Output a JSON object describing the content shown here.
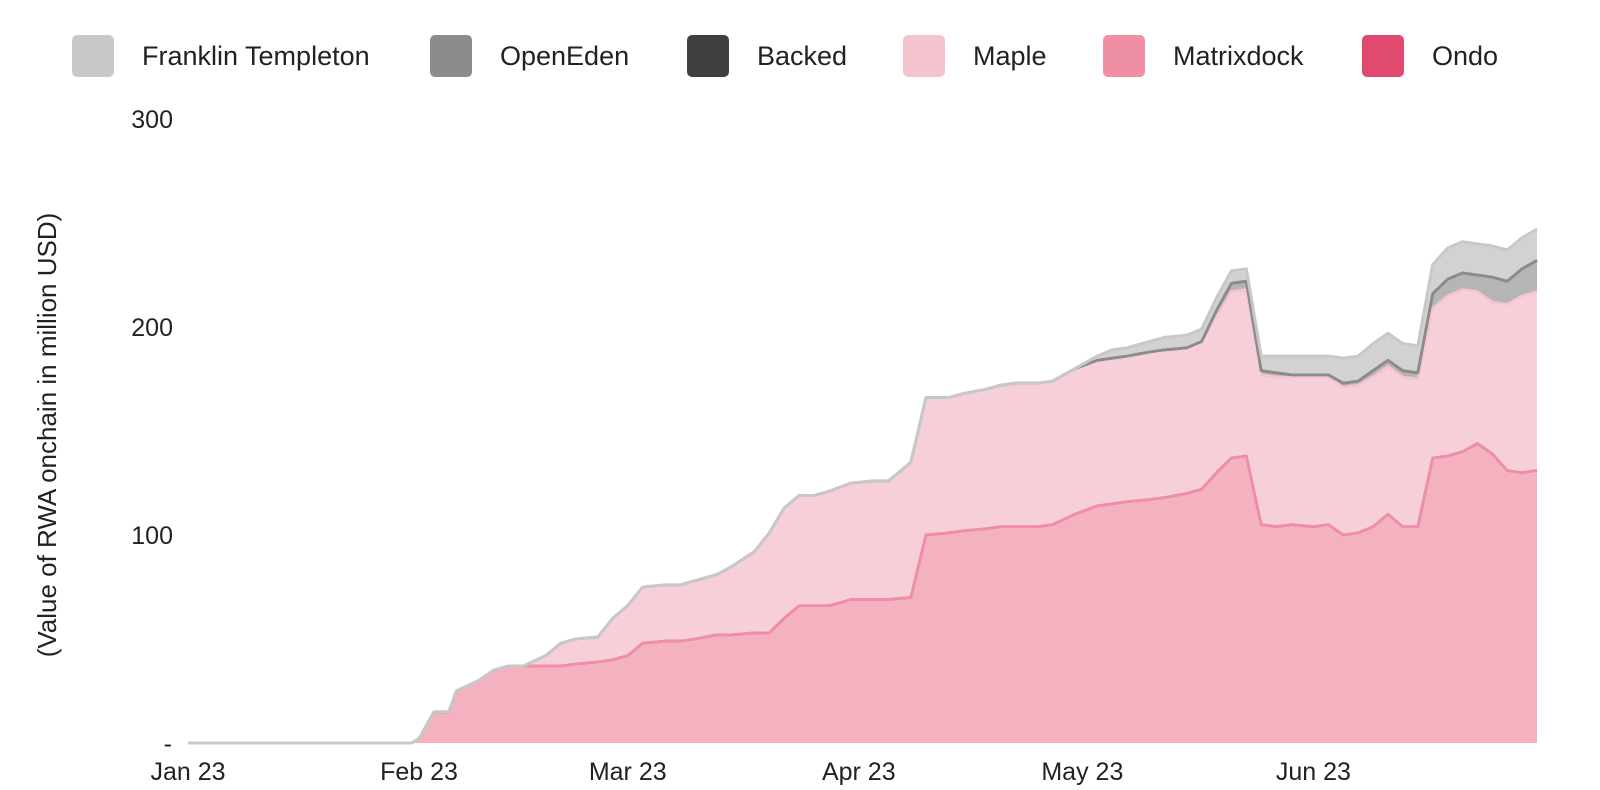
{
  "chart_data": {
    "type": "area",
    "stacked": true,
    "title": "",
    "xlabel": "",
    "ylabel": "(Value of RWA onchain in million USD)",
    "ylim": [
      0,
      300
    ],
    "yticks": [
      {
        "value": 0,
        "label": "-"
      },
      {
        "value": 100,
        "label": "100"
      },
      {
        "value": 200,
        "label": "200"
      },
      {
        "value": 300,
        "label": "300"
      }
    ],
    "xticks": [
      {
        "date": "2023-01-01",
        "label": "Jan 23"
      },
      {
        "date": "2023-02-01",
        "label": "Feb 23"
      },
      {
        "date": "2023-03-01",
        "label": "Mar 23"
      },
      {
        "date": "2023-04-01",
        "label": "Apr 23"
      },
      {
        "date": "2023-05-01",
        "label": "May 23"
      },
      {
        "date": "2023-06-01",
        "label": "Jun 23"
      }
    ],
    "xrange": [
      "2023-01-01",
      "2023-07-01"
    ],
    "grid": false,
    "legend_position": "top",
    "x": [
      "2023-01-01",
      "2023-01-31",
      "2023-02-01",
      "2023-02-03",
      "2023-02-05",
      "2023-02-06",
      "2023-02-09",
      "2023-02-11",
      "2023-02-13",
      "2023-02-15",
      "2023-02-18",
      "2023-02-20",
      "2023-02-22",
      "2023-02-25",
      "2023-02-27",
      "2023-03-01",
      "2023-03-03",
      "2023-03-06",
      "2023-03-08",
      "2023-03-10",
      "2023-03-13",
      "2023-03-15",
      "2023-03-18",
      "2023-03-20",
      "2023-03-22",
      "2023-03-24",
      "2023-03-26",
      "2023-03-28",
      "2023-03-31",
      "2023-04-03",
      "2023-04-05",
      "2023-04-08",
      "2023-04-10",
      "2023-04-13",
      "2023-04-15",
      "2023-04-18",
      "2023-04-20",
      "2023-04-22",
      "2023-04-25",
      "2023-04-27",
      "2023-04-30",
      "2023-05-03",
      "2023-05-05",
      "2023-05-07",
      "2023-05-10",
      "2023-05-12",
      "2023-05-15",
      "2023-05-17",
      "2023-05-19",
      "2023-05-21",
      "2023-05-23",
      "2023-05-25",
      "2023-05-27",
      "2023-05-29",
      "2023-06-01",
      "2023-06-03",
      "2023-06-05",
      "2023-06-07",
      "2023-06-09",
      "2023-06-11",
      "2023-06-13",
      "2023-06-15",
      "2023-06-17",
      "2023-06-19",
      "2023-06-21",
      "2023-06-23",
      "2023-06-25",
      "2023-06-27",
      "2023-06-29",
      "2023-07-01"
    ],
    "series": [
      {
        "name": "Ondo",
        "color": "#e04a6e",
        "values": [
          0,
          0,
          2,
          15,
          15,
          25,
          30,
          35,
          37,
          37,
          37,
          37,
          38,
          39,
          40,
          42,
          48,
          49,
          49,
          50,
          52,
          52,
          53,
          53,
          60,
          66,
          66,
          66,
          69,
          69,
          69,
          70,
          100,
          101,
          102,
          103,
          104,
          104,
          104,
          105,
          110,
          114,
          115,
          116,
          117,
          118,
          120,
          122,
          130,
          137,
          138,
          105,
          104,
          105,
          104,
          105,
          100,
          101,
          104,
          110,
          104,
          104,
          137,
          138,
          140,
          144,
          139,
          131,
          130,
          131
        ]
      },
      {
        "name": "Matrixdock",
        "color": "#ef8fa5",
        "values": [
          0,
          0,
          0,
          0,
          0,
          0,
          0,
          0,
          0,
          0,
          0,
          0,
          0,
          0,
          0,
          0,
          0,
          0,
          0,
          0,
          0,
          0,
          0,
          0,
          0,
          0,
          0,
          0,
          0,
          0,
          0,
          0,
          0,
          0,
          0,
          0,
          0,
          0,
          0,
          0,
          0,
          0,
          0,
          0,
          0,
          0,
          0,
          0,
          0,
          0,
          0,
          0,
          0,
          0,
          0,
          0,
          0,
          0,
          0,
          0,
          0,
          0,
          0,
          0,
          0,
          0,
          0,
          0,
          0,
          0
        ]
      },
      {
        "name": "Maple",
        "color": "#f5c4cf",
        "values": [
          0,
          0,
          0,
          0,
          0,
          0,
          0,
          0,
          0,
          0,
          5,
          11,
          12,
          12,
          20,
          24,
          27,
          27,
          27,
          28,
          29,
          33,
          39,
          48,
          53,
          53,
          53,
          55,
          56,
          57,
          57,
          65,
          66,
          65,
          66,
          67,
          68,
          69,
          69,
          69,
          70,
          70,
          70,
          70,
          71,
          71,
          70,
          71,
          75,
          80,
          80,
          72,
          72,
          71,
          72,
          71,
          71,
          71,
          72,
          71,
          72,
          71,
          72,
          77,
          78,
          73,
          73,
          80,
          85,
          86
        ]
      },
      {
        "name": "Backed",
        "color": "#404040",
        "values": [
          0,
          0,
          0,
          0,
          0,
          0,
          0,
          0,
          0,
          0,
          0,
          0,
          0,
          0,
          0,
          0,
          0,
          0,
          0,
          0,
          0,
          0,
          0,
          0,
          0,
          0,
          0,
          0,
          0,
          0,
          0,
          0,
          0,
          0,
          0,
          0,
          0,
          0,
          0,
          0,
          0,
          0,
          0,
          0,
          0,
          0,
          0,
          0,
          3,
          4,
          4,
          2,
          2,
          1,
          1,
          1,
          2,
          2,
          3,
          3,
          3,
          3,
          7,
          8,
          8,
          8,
          12,
          11,
          13,
          15
        ]
      },
      {
        "name": "OpenEden",
        "color": "#8c8c8c",
        "values": [
          0,
          0,
          0,
          0,
          0,
          0,
          0,
          0,
          0,
          0,
          0,
          0,
          0,
          0,
          0,
          0,
          0,
          0,
          0,
          0,
          0,
          0,
          0,
          0,
          0,
          0,
          0,
          0,
          0,
          0,
          0,
          0,
          0,
          0,
          0,
          0,
          0,
          0,
          0,
          0,
          0,
          0,
          0,
          0,
          0,
          0,
          0,
          0,
          0,
          0,
          0,
          0,
          0,
          0,
          0,
          0,
          0,
          0,
          0,
          0,
          0,
          0,
          0,
          0,
          0,
          0,
          0,
          0,
          0,
          0
        ]
      },
      {
        "name": "Franklin Templeton",
        "color": "#c8c8c8",
        "values": [
          0,
          0,
          0,
          0,
          0,
          0,
          0,
          0,
          0,
          0,
          0,
          0,
          0,
          0,
          0,
          0,
          0,
          0,
          0,
          0,
          0,
          0,
          0,
          0,
          0,
          0,
          0,
          0,
          0,
          0,
          0,
          0,
          0,
          0,
          0,
          0,
          0,
          0,
          0,
          0,
          0,
          2,
          4,
          4,
          5,
          6,
          6,
          6,
          6,
          6,
          6,
          7,
          8,
          9,
          9,
          9,
          12,
          12,
          13,
          13,
          13,
          13,
          14,
          15,
          15,
          15,
          15,
          15,
          15,
          15
        ]
      }
    ]
  }
}
